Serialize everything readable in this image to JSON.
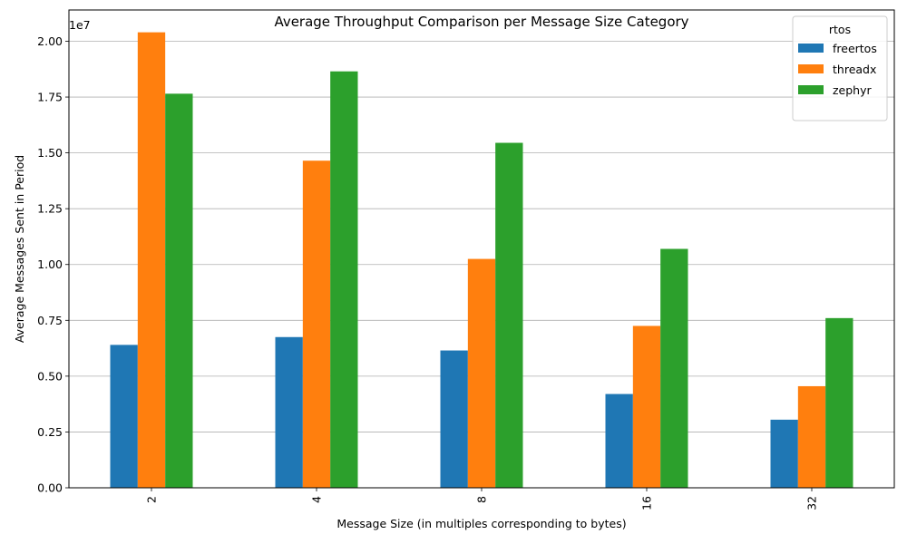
{
  "chart_data": {
    "type": "bar",
    "title": "Average Throughput Comparison per Message Size Category",
    "xlabel": "Message Size (in multiples corresponding to bytes)",
    "ylabel": "Average Messages Sent in Period",
    "offset_label": "1e7",
    "categories": [
      "2",
      "4",
      "8",
      "16",
      "32"
    ],
    "series": [
      {
        "name": "freertos",
        "color": "#1f77b4",
        "values": [
          6400000,
          6750000,
          6150000,
          4200000,
          3050000
        ]
      },
      {
        "name": "threadx",
        "color": "#ff7f0e",
        "values": [
          20400000,
          14650000,
          10250000,
          7250000,
          4550000
        ]
      },
      {
        "name": "zephyr",
        "color": "#2ca02c",
        "values": [
          17650000,
          18650000,
          15450000,
          10700000,
          7600000
        ]
      }
    ],
    "ylim": [
      0,
      21400000
    ],
    "yticks": [
      0,
      2500000,
      5000000,
      7500000,
      10000000,
      12500000,
      15000000,
      17500000,
      20000000
    ],
    "ytick_labels": [
      "0.00",
      "0.25",
      "0.50",
      "0.75",
      "1.00",
      "1.25",
      "1.50",
      "1.75",
      "2.00"
    ],
    "grid": "y",
    "legend": {
      "title": "rtos",
      "placement": "top-right"
    }
  }
}
